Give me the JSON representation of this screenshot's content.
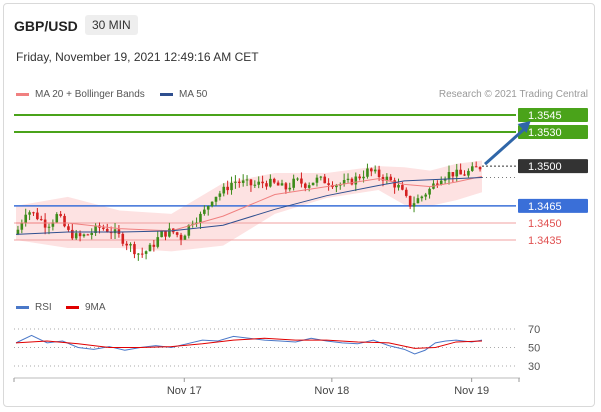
{
  "header": {
    "symbol": "GBP/USD",
    "timeframe": "30 MIN",
    "datetime": "Friday, November 19, 2021 12:49:16 AM CET"
  },
  "legend": {
    "ma20": {
      "label": "MA 20 + Bollinger Bands",
      "color": "#f08080"
    },
    "ma50": {
      "label": "MA 50",
      "color": "#2f4f8f"
    },
    "credit": "Research © 2021 Trading Central"
  },
  "rsi_legend": {
    "rsi": {
      "label": "RSI",
      "color": "#4a78c8"
    },
    "ma9": {
      "label": "9MA",
      "color": "#e00000"
    }
  },
  "colors": {
    "resistance": "#4aa31a",
    "pivot": "#3a6fd8",
    "support": "#e05050",
    "last_price": "#333333",
    "bull": "#3d8b1a",
    "bear": "#d42020",
    "band_fill": "#fde2e2"
  },
  "chart_data": [
    {
      "type": "candlestick",
      "ylim": [
        1.3405,
        1.3555
      ],
      "levels": [
        {
          "value": 1.3545,
          "label": "1.3545",
          "kind": "resistance"
        },
        {
          "value": 1.353,
          "label": "1.3530",
          "kind": "resistance"
        },
        {
          "value": 1.35,
          "label": "1.3500",
          "kind": "last"
        },
        {
          "value": 1.3465,
          "label": "1.3465",
          "kind": "pivot"
        },
        {
          "value": 1.345,
          "label": "1.3450",
          "kind": "support"
        },
        {
          "value": 1.3435,
          "label": "1.3435",
          "kind": "support"
        }
      ],
      "x_ticks": [
        "Nov 17",
        "Nov 18",
        "Nov 19"
      ],
      "close_path": [
        [
          0,
          1.344
        ],
        [
          4,
          1.3462
        ],
        [
          8,
          1.3456
        ],
        [
          12,
          1.3448
        ],
        [
          16,
          1.3457
        ],
        [
          20,
          1.3442
        ],
        [
          24,
          1.3437
        ],
        [
          28,
          1.344
        ],
        [
          32,
          1.3446
        ],
        [
          36,
          1.3444
        ],
        [
          40,
          1.3438
        ],
        [
          44,
          1.343
        ],
        [
          48,
          1.3422
        ],
        [
          52,
          1.3428
        ],
        [
          56,
          1.344
        ],
        [
          60,
          1.3443
        ],
        [
          64,
          1.3437
        ],
        [
          68,
          1.3452
        ],
        [
          72,
          1.3457
        ],
        [
          76,
          1.3473
        ],
        [
          80,
          1.3478
        ],
        [
          84,
          1.3487
        ],
        [
          88,
          1.3485
        ],
        [
          92,
          1.3483
        ],
        [
          96,
          1.3486
        ],
        [
          100,
          1.3484
        ],
        [
          104,
          1.348
        ],
        [
          108,
          1.3487
        ],
        [
          112,
          1.3484
        ],
        [
          116,
          1.3488
        ],
        [
          120,
          1.3487
        ],
        [
          124,
          1.3484
        ],
        [
          128,
          1.3485
        ],
        [
          132,
          1.349
        ],
        [
          136,
          1.3496
        ],
        [
          140,
          1.3492
        ],
        [
          144,
          1.3488
        ],
        [
          148,
          1.3481
        ],
        [
          152,
          1.3466
        ],
        [
          156,
          1.3472
        ],
        [
          160,
          1.348
        ],
        [
          164,
          1.3491
        ],
        [
          168,
          1.3494
        ],
        [
          172,
          1.3492
        ],
        [
          176,
          1.3496
        ],
        [
          180,
          1.35
        ]
      ],
      "ma20": [
        [
          0,
          1.345
        ],
        [
          20,
          1.345
        ],
        [
          40,
          1.3445
        ],
        [
          60,
          1.3443
        ],
        [
          80,
          1.3456
        ],
        [
          100,
          1.3475
        ],
        [
          120,
          1.3482
        ],
        [
          140,
          1.3489
        ],
        [
          150,
          1.3484
        ],
        [
          160,
          1.3482
        ],
        [
          170,
          1.3486
        ],
        [
          180,
          1.3491
        ]
      ],
      "ma50": [
        [
          0,
          1.344
        ],
        [
          20,
          1.3442
        ],
        [
          40,
          1.3442
        ],
        [
          60,
          1.3443
        ],
        [
          80,
          1.3448
        ],
        [
          100,
          1.3462
        ],
        [
          120,
          1.3474
        ],
        [
          140,
          1.3483
        ],
        [
          150,
          1.3487
        ],
        [
          160,
          1.3488
        ],
        [
          170,
          1.3489
        ],
        [
          180,
          1.349
        ]
      ],
      "bb_upper": [
        [
          0,
          1.3465
        ],
        [
          20,
          1.3473
        ],
        [
          40,
          1.3461
        ],
        [
          60,
          1.3458
        ],
        [
          80,
          1.3485
        ],
        [
          100,
          1.3494
        ],
        [
          120,
          1.3494
        ],
        [
          140,
          1.35
        ],
        [
          150,
          1.3499
        ],
        [
          160,
          1.3496
        ],
        [
          170,
          1.3502
        ],
        [
          180,
          1.3505
        ]
      ],
      "bb_lower": [
        [
          0,
          1.3435
        ],
        [
          20,
          1.3428
        ],
        [
          40,
          1.3428
        ],
        [
          60,
          1.3425
        ],
        [
          80,
          1.343
        ],
        [
          100,
          1.3458
        ],
        [
          120,
          1.3472
        ],
        [
          140,
          1.3479
        ],
        [
          150,
          1.3466
        ],
        [
          160,
          1.3465
        ],
        [
          170,
          1.347
        ],
        [
          180,
          1.3477
        ]
      ],
      "forecast_arrow": {
        "from": [
          180,
          1.35
        ],
        "to": [
          198,
          1.3545
        ]
      }
    },
    {
      "type": "line",
      "title": "RSI",
      "ylim": [
        25,
        75
      ],
      "y_ticks": [
        70,
        50,
        30
      ],
      "rsi": [
        [
          0,
          55
        ],
        [
          6,
          63
        ],
        [
          12,
          55
        ],
        [
          18,
          57
        ],
        [
          24,
          50
        ],
        [
          30,
          48
        ],
        [
          36,
          51
        ],
        [
          42,
          47
        ],
        [
          48,
          50
        ],
        [
          54,
          52
        ],
        [
          60,
          50
        ],
        [
          66,
          54
        ],
        [
          72,
          58
        ],
        [
          78,
          57
        ],
        [
          84,
          62
        ],
        [
          90,
          60
        ],
        [
          96,
          58
        ],
        [
          102,
          57
        ],
        [
          108,
          56
        ],
        [
          114,
          60
        ],
        [
          120,
          57
        ],
        [
          126,
          55
        ],
        [
          132,
          54
        ],
        [
          138,
          58
        ],
        [
          144,
          52
        ],
        [
          150,
          48
        ],
        [
          154,
          43
        ],
        [
          158,
          47
        ],
        [
          162,
          55
        ],
        [
          166,
          57
        ],
        [
          170,
          58
        ],
        [
          176,
          56
        ],
        [
          180,
          58
        ]
      ],
      "ma9": [
        [
          0,
          55
        ],
        [
          12,
          57
        ],
        [
          24,
          54
        ],
        [
          36,
          50
        ],
        [
          48,
          50
        ],
        [
          60,
          51
        ],
        [
          72,
          54
        ],
        [
          84,
          58
        ],
        [
          96,
          60
        ],
        [
          108,
          58
        ],
        [
          120,
          58
        ],
        [
          132,
          56
        ],
        [
          144,
          55
        ],
        [
          154,
          49
        ],
        [
          162,
          50
        ],
        [
          170,
          56
        ],
        [
          180,
          57
        ]
      ]
    }
  ]
}
